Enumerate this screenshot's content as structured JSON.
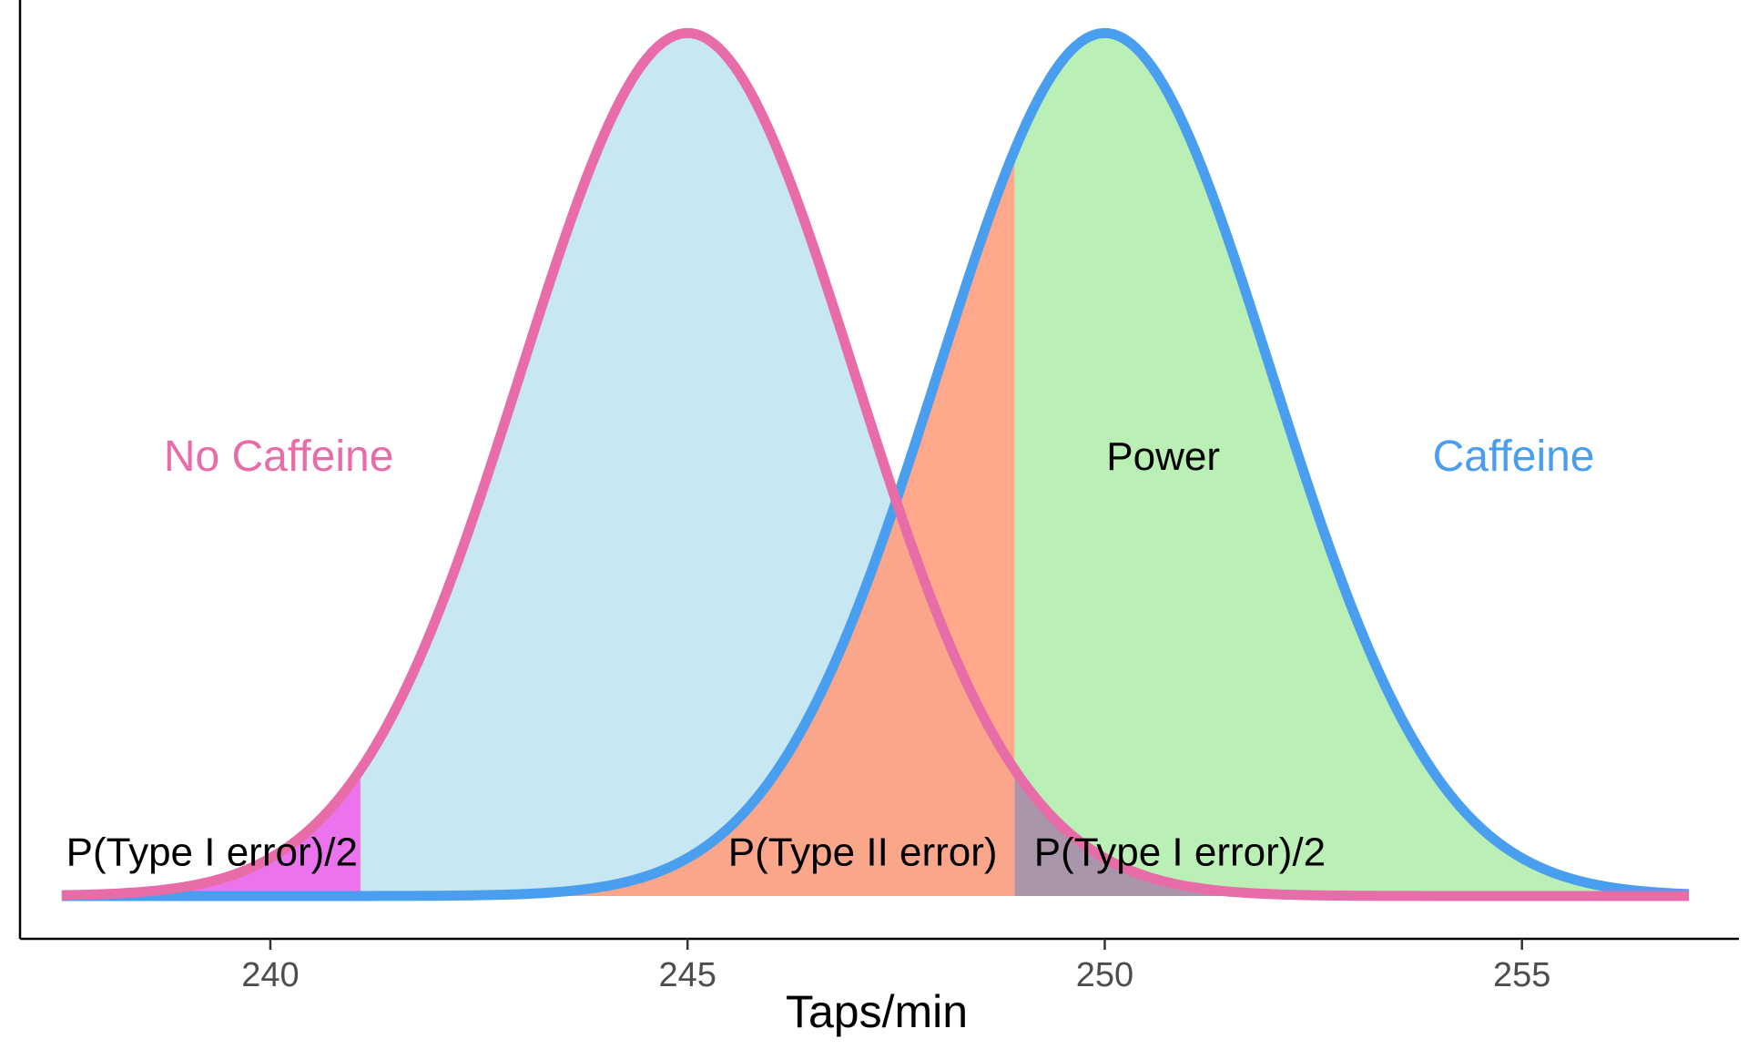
{
  "chart_data": {
    "type": "area",
    "xlabel": "Taps/min",
    "ylabel": "",
    "xlim": [
      237.0,
      257.6
    ],
    "ylim": [
      0,
      0.205
    ],
    "xticks": [
      240,
      245,
      250,
      255
    ],
    "xtick_labels": [
      "240",
      "245",
      "250",
      "255"
    ],
    "x_range": [
      237.5,
      257
    ],
    "grid": false,
    "legend": "none",
    "critical_values": {
      "lower": 241.08,
      "upper": 248.92
    },
    "series": [
      {
        "name": "No Caffeine",
        "distribution": "normal",
        "mean": 245,
        "sd": 2,
        "color": "#E86CA8"
      },
      {
        "name": "Caffeine",
        "distribution": "normal",
        "mean": 250,
        "sd": 2,
        "color": "#4A9EF0"
      }
    ],
    "regions": [
      {
        "label": "",
        "curve": "No Caffeine",
        "from": 241.08,
        "to": 248.92,
        "color": "#C7E7F3"
      },
      {
        "label": "P(Type I error)/2",
        "curve": "No Caffeine",
        "from": 237.5,
        "to": 241.08,
        "color": "#EB74EE"
      },
      {
        "label": "P(Type II error)",
        "curve": "Caffeine",
        "from": 237.5,
        "to": 248.92,
        "color": "#FF9E80",
        "opacity": 0.9
      },
      {
        "label": "Power",
        "curve": "Caffeine",
        "from": 248.92,
        "to": 257,
        "color": "#BAEFB5"
      },
      {
        "label": "P(Type I error)/2",
        "curve": "No Caffeine",
        "from": 248.92,
        "to": 257,
        "color": "#A98CA9",
        "opacity": 0.9
      }
    ],
    "annotations": [
      {
        "text": "No Caffeine",
        "x": 240.1,
        "y": 0.101,
        "color": "#E86CA8",
        "role": "series"
      },
      {
        "text": "Caffeine",
        "x": 254.9,
        "y": 0.101,
        "color": "#4A9EF0",
        "role": "series"
      },
      {
        "text": "Power",
        "x": 250.7,
        "y": 0.101,
        "color": "#000000",
        "role": "region"
      },
      {
        "text": "P(Type I error)/2",
        "x": 239.3,
        "y": 0.0095,
        "color": "#000000",
        "role": "region"
      },
      {
        "text": "P(Type II error)",
        "x": 247.1,
        "y": 0.0095,
        "color": "#000000",
        "role": "region"
      },
      {
        "text": "P(Type I error)/2",
        "x": 250.9,
        "y": 0.0095,
        "color": "#000000",
        "role": "region"
      }
    ]
  }
}
